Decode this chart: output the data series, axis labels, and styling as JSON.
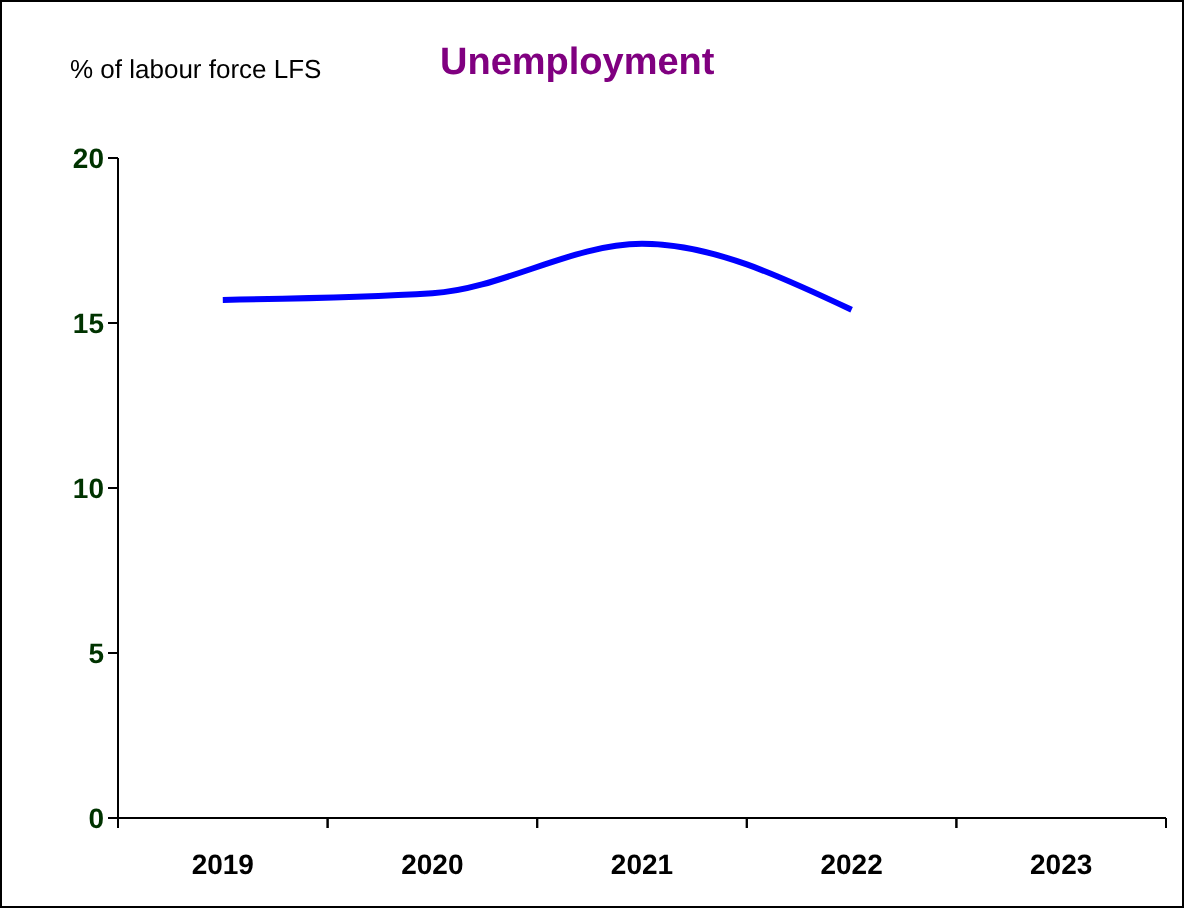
{
  "chart_data": {
    "type": "line",
    "title": "Unemployment",
    "ylabel": "% of labour force LFS",
    "categories": [
      "2019",
      "2020",
      "2021",
      "2022",
      "2023"
    ],
    "series": [
      {
        "color": "#0000ff",
        "values": [
          15.7,
          15.9,
          17.4,
          15.4,
          null
        ]
      }
    ],
    "ylim": [
      0,
      20
    ],
    "yticks": [
      0,
      5,
      10,
      15,
      20
    ]
  }
}
